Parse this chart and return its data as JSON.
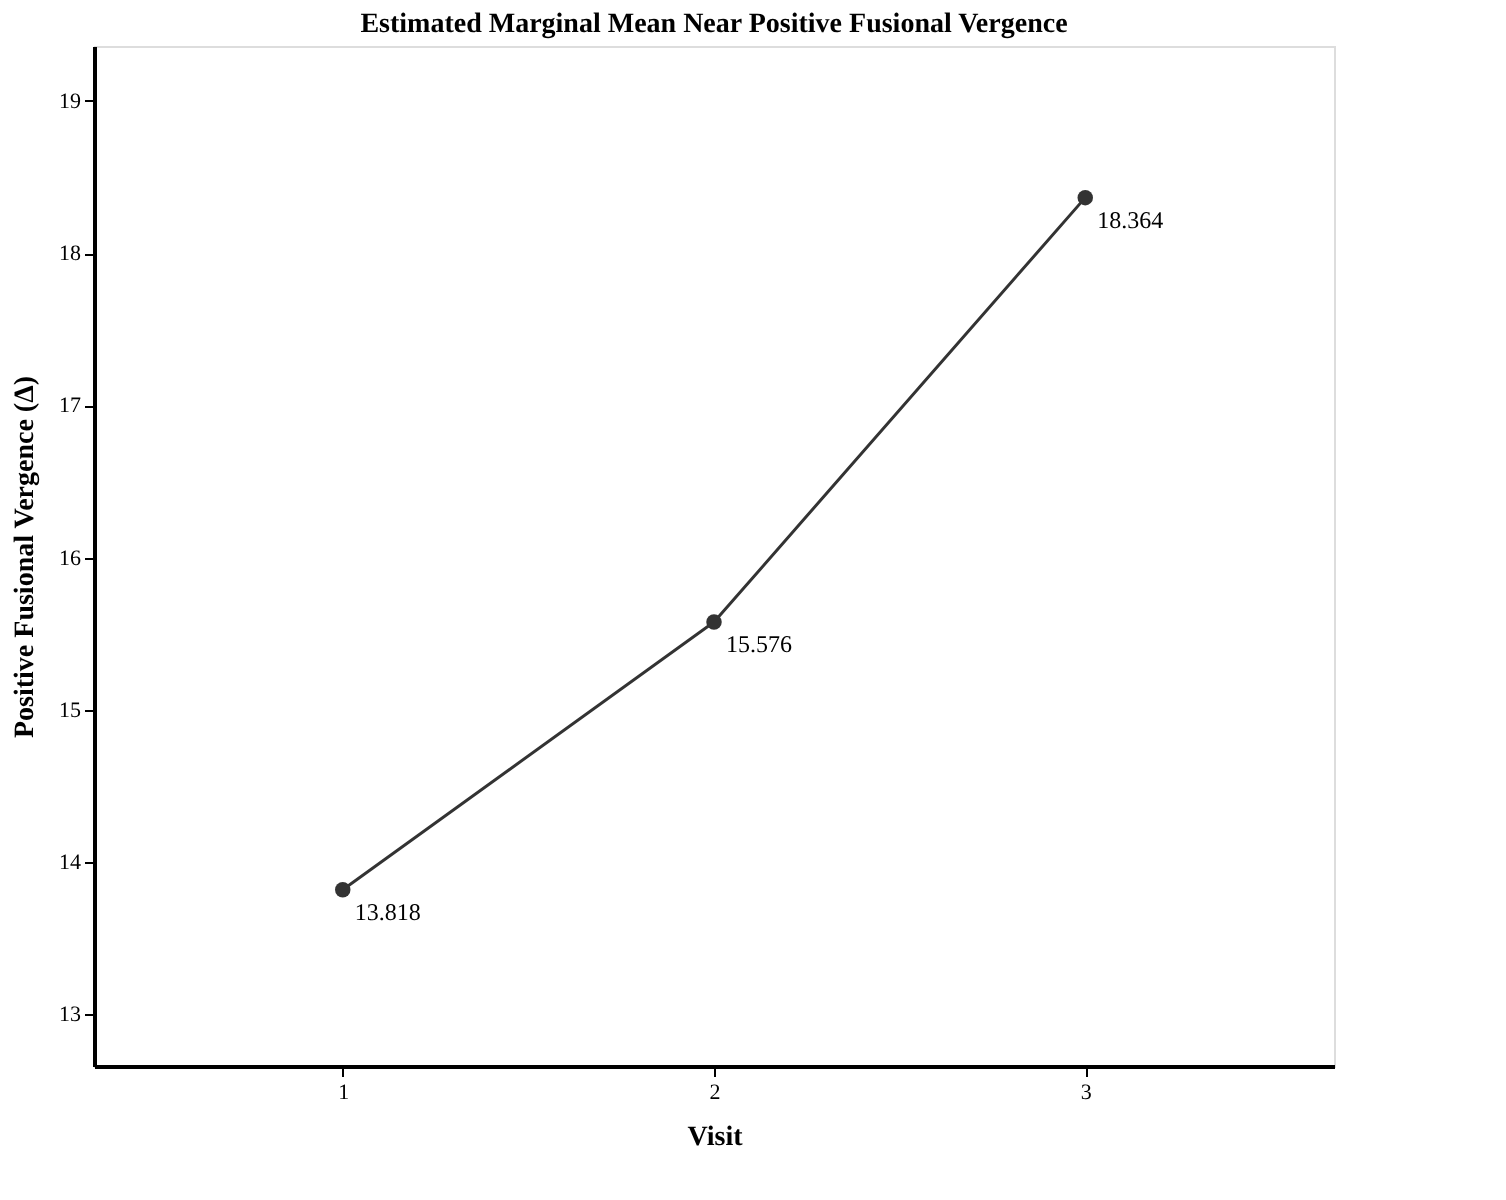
{
  "chart_data": {
    "type": "line",
    "title": "Estimated Marginal Mean Near Positive Fusional Vergence",
    "xlabel": "Visit",
    "ylabel": "Positive Fusional Vergence (Δ)",
    "x": [
      1,
      2,
      3
    ],
    "series": [
      {
        "color": "#333333",
        "values": [
          13.818,
          15.576,
          18.364
        ]
      }
    ],
    "xlim": [
      0.33,
      3.67
    ],
    "xticks": [
      1,
      2,
      3
    ],
    "ylim": [
      12.66,
      19.36
    ],
    "yticks": [
      13,
      14,
      15,
      16,
      17,
      18,
      19
    ],
    "data_labels": true,
    "marker": "circle",
    "line_style": "solid",
    "grid": false
  }
}
